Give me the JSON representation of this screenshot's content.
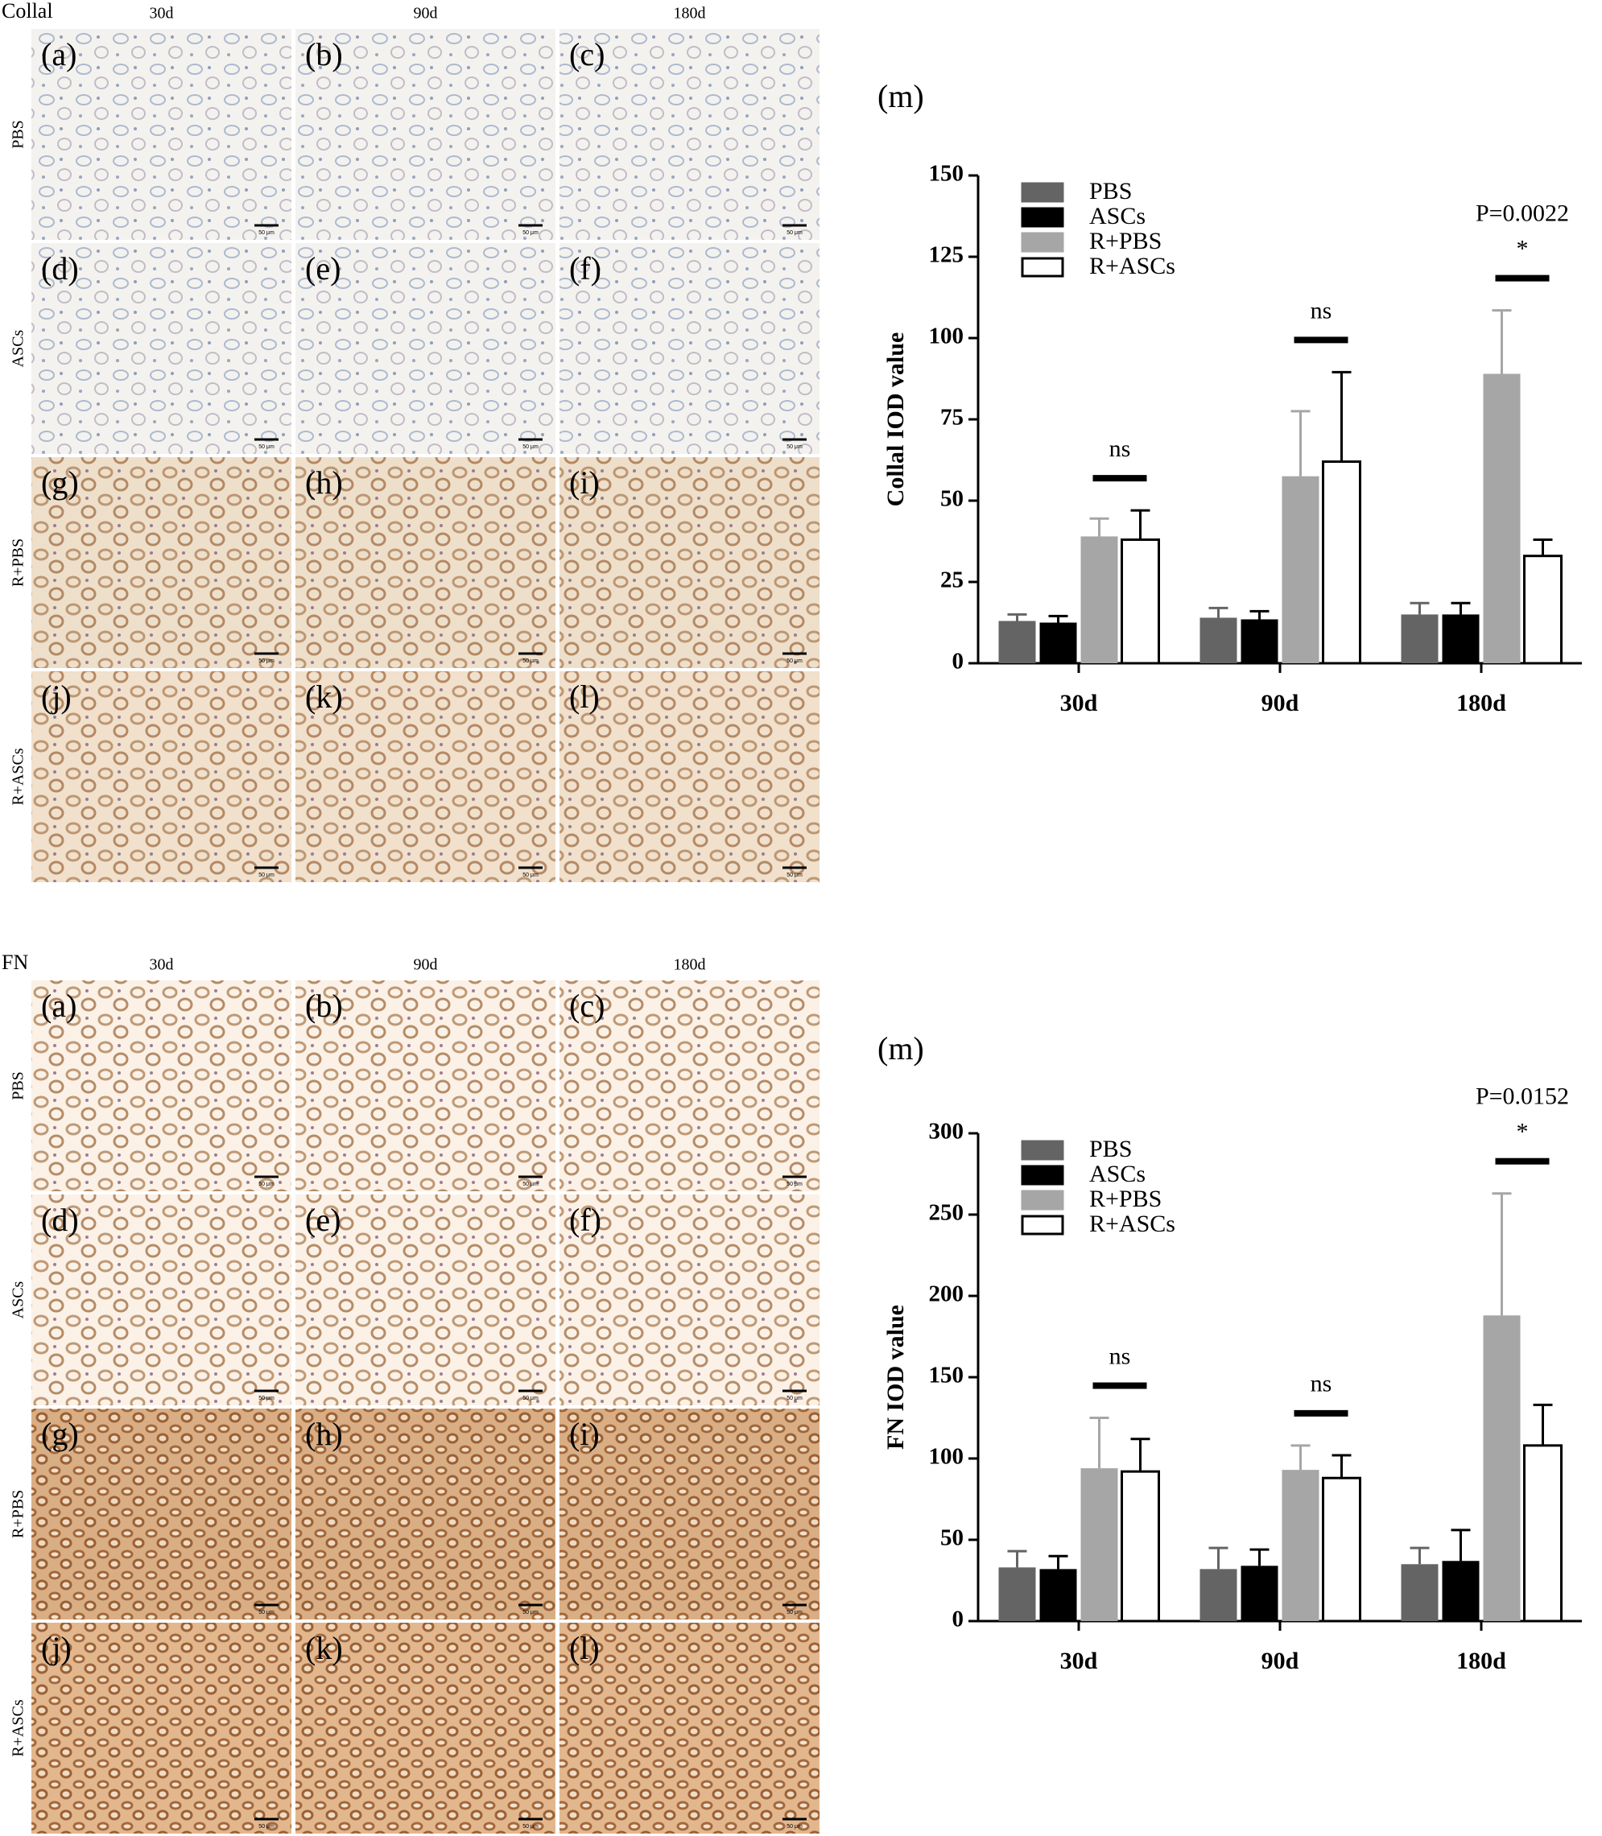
{
  "panels": [
    {
      "title": "Collal",
      "columns": [
        "30d",
        "90d",
        "180d"
      ],
      "rows": [
        "PBS",
        "ASCs",
        "R+PBS",
        "R+ASCs"
      ],
      "image_labels": [
        "(a)",
        "(b)",
        "(c)",
        "(d)",
        "(e)",
        "(f)",
        "(g)",
        "(h)",
        "(i)",
        "(j)",
        "(k)",
        "(l)"
      ],
      "scale_bar": "50 μm",
      "chart_label": "(m)"
    },
    {
      "title": "FN",
      "columns": [
        "30d",
        "90d",
        "180d"
      ],
      "rows": [
        "PBS",
        "ASCs",
        "R+PBS",
        "R+ASCs"
      ],
      "image_labels": [
        "(a)",
        "(b)",
        "(c)",
        "(d)",
        "(e)",
        "(f)",
        "(g)",
        "(h)",
        "(i)",
        "(j)",
        "(k)",
        "(l)"
      ],
      "scale_bar": "50 μm",
      "chart_label": "(m)"
    }
  ],
  "chart_data": [
    {
      "type": "bar",
      "y_label": "Collal IOD value",
      "categories": [
        "30d",
        "90d",
        "180d"
      ],
      "ylim": [
        0,
        150
      ],
      "yticks": [
        0,
        25,
        50,
        75,
        100,
        125,
        150
      ],
      "series": [
        {
          "name": "PBS",
          "color": "#646464",
          "values": [
            13,
            14,
            15
          ],
          "errors": [
            2,
            3,
            3.5
          ]
        },
        {
          "name": "ASCs",
          "color": "#000000",
          "values": [
            12.5,
            13.5,
            15
          ],
          "errors": [
            2,
            2.5,
            3.5
          ]
        },
        {
          "name": "R+PBS",
          "color": "#a6a6a6",
          "values": [
            39,
            57.5,
            89
          ],
          "errors": [
            5.5,
            20,
            19.5
          ]
        },
        {
          "name": "R+ASCs",
          "color": "#ffffff",
          "values": [
            38,
            62,
            33
          ],
          "errors": [
            9,
            27.5,
            5
          ]
        }
      ],
      "significance": [
        "ns",
        "ns",
        "*"
      ],
      "p_values": [
        null,
        null,
        "P=0.0022"
      ]
    },
    {
      "type": "bar",
      "y_label": "FN IOD value",
      "categories": [
        "30d",
        "90d",
        "180d"
      ],
      "ylim": [
        0,
        300
      ],
      "yticks": [
        0,
        50,
        100,
        150,
        200,
        250,
        300
      ],
      "series": [
        {
          "name": "PBS",
          "color": "#646464",
          "values": [
            33,
            32,
            35
          ],
          "errors": [
            10,
            13,
            10
          ]
        },
        {
          "name": "ASCs",
          "color": "#000000",
          "values": [
            32,
            34,
            37
          ],
          "errors": [
            8,
            10,
            19
          ]
        },
        {
          "name": "R+PBS",
          "color": "#a6a6a6",
          "values": [
            94,
            93,
            188
          ],
          "errors": [
            31,
            15,
            75
          ]
        },
        {
          "name": "R+ASCs",
          "color": "#ffffff",
          "values": [
            92,
            88,
            108
          ],
          "errors": [
            20,
            14,
            25
          ]
        }
      ],
      "significance": [
        "ns",
        "ns",
        "*"
      ],
      "p_values": [
        null,
        null,
        "P=0.0152"
      ]
    }
  ]
}
